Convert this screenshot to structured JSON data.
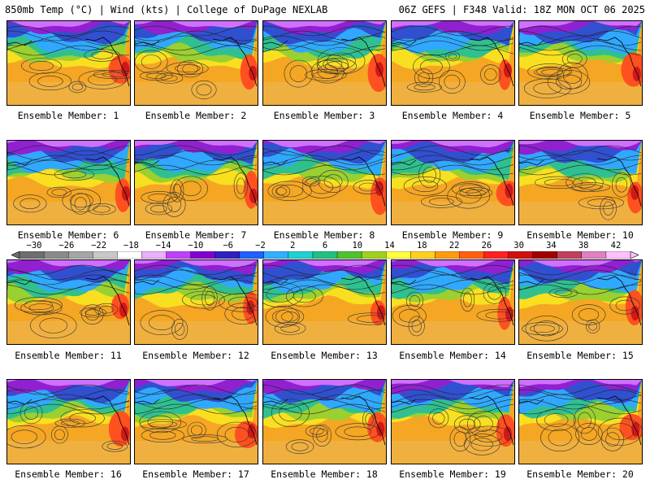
{
  "header": {
    "left": "850mb Temp (°C) | Wind (kts) | College of DuPage NEXLAB",
    "right": "06Z GEFS | F348 Valid: 18Z MON OCT 06 2025"
  },
  "members": [
    "Ensemble Member: 1",
    "Ensemble Member: 2",
    "Ensemble Member: 3",
    "Ensemble Member: 4",
    "Ensemble Member: 5",
    "Ensemble Member: 6",
    "Ensemble Member: 7",
    "Ensemble Member: 8",
    "Ensemble Member: 9",
    "Ensemble Member: 10",
    "Ensemble Member: 11",
    "Ensemble Member: 12",
    "Ensemble Member: 13",
    "Ensemble Member: 14",
    "Ensemble Member: 15",
    "Ensemble Member: 16",
    "Ensemble Member: 17",
    "Ensemble Member: 18",
    "Ensemble Member: 19",
    "Ensemble Member: 20"
  ],
  "colorbar": {
    "labels": [
      "−30",
      "−26",
      "−22",
      "−18",
      "−14",
      "−10",
      "−6",
      "−2",
      "2",
      "6",
      "10",
      "14",
      "18",
      "22",
      "26",
      "30",
      "34",
      "38",
      "42"
    ],
    "colors": [
      "#6e6e6e",
      "#8a8a8a",
      "#a5a5a5",
      "#c8c8c8",
      "#ffffff",
      "#e8b0ff",
      "#c040ff",
      "#8000d0",
      "#3020c0",
      "#2060ff",
      "#30b0ff",
      "#20d0d0",
      "#20c080",
      "#50c030",
      "#a0d020",
      "#ffff40",
      "#ffd020",
      "#ff9a10",
      "#ff6010",
      "#ff2020",
      "#d01010",
      "#a00000",
      "#c04060",
      "#e080c0",
      "#ffc0ff"
    ]
  }
}
